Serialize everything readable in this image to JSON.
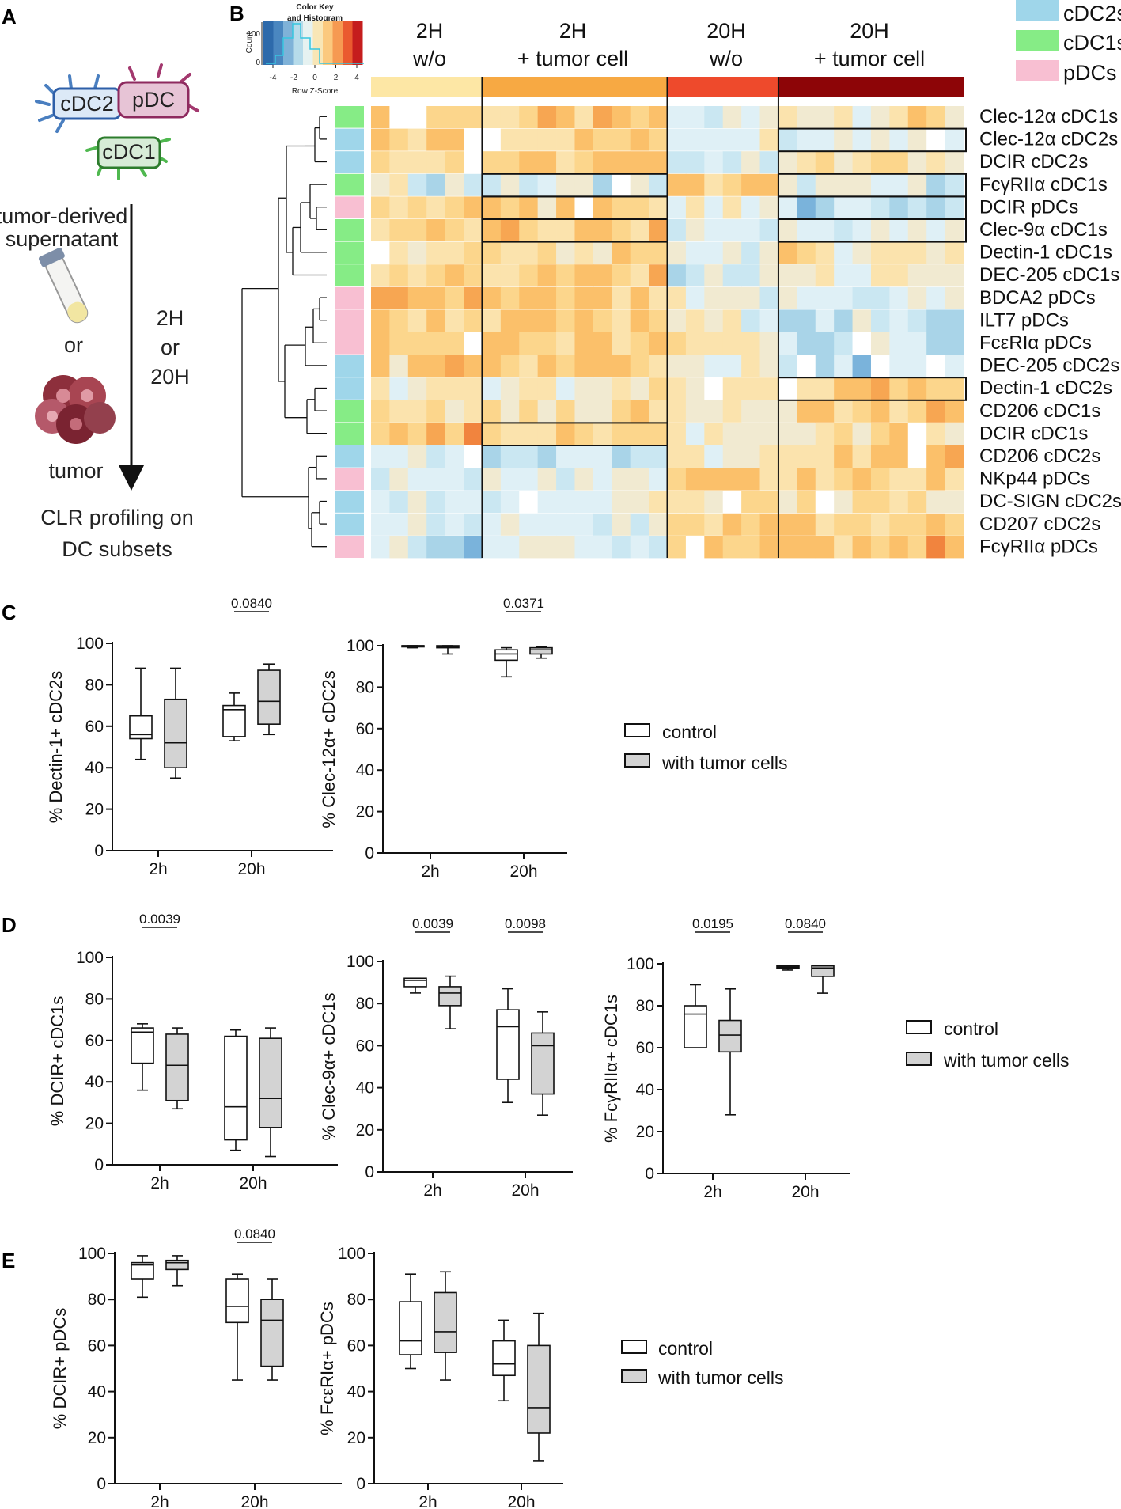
{
  "panels": {
    "A": "A",
    "B": "B",
    "C": "C",
    "D": "D",
    "E": "E"
  },
  "schematic": {
    "cells": {
      "cdc2": "cDC2",
      "pdc": "pDC",
      "cdc1": "cDC1"
    },
    "supernatant_l1": "tumor-derived",
    "supernatant_l2": "supernatant",
    "or_word": "or",
    "tumor_label": "tumor",
    "time_l1": "2H",
    "time_l2": "or",
    "time_l3": "20H",
    "result_l1": "CLR profiling on",
    "result_l2": "DC subsets"
  },
  "colors": {
    "cdc2": "#9fd6ea",
    "cdc1": "#86ec86",
    "pdc": "#f8bfd2",
    "box_control": "#ffffff",
    "box_tumor": "#d3d3d3",
    "bar_2h_wo": "#fde7a5",
    "bar_2h_tumor": "#f7a943",
    "bar_20h_wo": "#ee4a2c",
    "bar_20h_tumor": "#8d0507"
  },
  "heatmap": {
    "color_key_title_l1": "Color Key",
    "color_key_title_l2": "and Histogram",
    "color_key_ylabel": "Count",
    "color_key_counts": [
      "0",
      "100"
    ],
    "color_key_ticks": [
      "-4",
      "-2",
      "0",
      "2",
      "4"
    ],
    "color_key_xlabel": "Row Z-Score",
    "columns": [
      {
        "line1": "2H",
        "line2": "w/o"
      },
      {
        "line1": "2H",
        "line2": "+ tumor cell"
      },
      {
        "line1": "20H",
        "line2": "w/o"
      },
      {
        "line1": "20H",
        "line2": "+ tumor cell"
      }
    ],
    "legend": [
      {
        "label": "cDC2s",
        "key": "cdc2"
      },
      {
        "label": "cDC1s",
        "key": "cdc1"
      },
      {
        "label": "pDCs",
        "key": "pdc"
      }
    ],
    "rows": [
      {
        "label": "Clec-12α cDC1s",
        "subset": "cdc1"
      },
      {
        "label": "Clec-12α cDC2s",
        "subset": "cdc2"
      },
      {
        "label": "DCIR cDC2s",
        "subset": "cdc2"
      },
      {
        "label": "FcγRIIα cDC1s",
        "subset": "cdc1"
      },
      {
        "label": "DCIR pDCs",
        "subset": "pdc"
      },
      {
        "label": "Clec-9α cDC1s",
        "subset": "cdc1"
      },
      {
        "label": "Dectin-1 cDC1s",
        "subset": "cdc1"
      },
      {
        "label": "DEC-205 cDC1s",
        "subset": "cdc1"
      },
      {
        "label": "BDCA2 pDCs",
        "subset": "pdc"
      },
      {
        "label": "ILT7 pDCs",
        "subset": "pdc"
      },
      {
        "label": "FcεRIα pDCs",
        "subset": "pdc"
      },
      {
        "label": "DEC-205 cDC2s",
        "subset": "cdc2"
      },
      {
        "label": "Dectin-1 cDC2s",
        "subset": "cdc2"
      },
      {
        "label": "CD206 cDC1s",
        "subset": "cdc1"
      },
      {
        "label": "DCIR cDC1s",
        "subset": "cdc1"
      },
      {
        "label": "CD206 cDC2s",
        "subset": "cdc2"
      },
      {
        "label": "NKp44 pDCs",
        "subset": "pdc"
      },
      {
        "label": "DC-SIGN cDC2s",
        "subset": "cdc2"
      },
      {
        "label": "CD207 cDC2s",
        "subset": "cdc2"
      },
      {
        "label": "FcγRIIα pDCs",
        "subset": "pdc"
      }
    ],
    "highlights": [
      {
        "group": "2H + tumor cell",
        "rows": [
          "FcγRIIα cDC1s",
          "DCIR pDCs",
          "Clec-9α cDC1s",
          "DCIR cDC1s"
        ]
      },
      {
        "group": "20H + tumor cell",
        "rows": [
          "Clec-12α cDC2s",
          "FcγRIIα cDC1s",
          "DCIR pDCs",
          "Clec-9α cDC1s",
          "Dectin-1 cDC2s"
        ]
      }
    ]
  },
  "legend_box": {
    "control": "control",
    "tumor": "with tumor cells"
  },
  "chart_data": [
    {
      "id": "C1",
      "type": "box",
      "ylabel": "% Dectin-1+ cDC2s",
      "ylim": [
        0,
        100
      ],
      "yticks": [
        0,
        20,
        40,
        60,
        80,
        100
      ],
      "categories": [
        "2h",
        "20h"
      ],
      "series": [
        {
          "name": "control",
          "boxes": [
            {
              "min": 44,
              "q1": 54,
              "median": 56,
              "q3": 65,
              "max": 88
            },
            {
              "min": 53,
              "q1": 55,
              "median": 68,
              "q3": 70,
              "max": 76
            }
          ]
        },
        {
          "name": "with tumor cells",
          "boxes": [
            {
              "min": 35,
              "q1": 40,
              "median": 52,
              "q3": 73,
              "max": 88
            },
            {
              "min": 56,
              "q1": 61,
              "median": 72,
              "q3": 87,
              "max": 90
            }
          ]
        }
      ],
      "pvalues": [
        {
          "category": "20h",
          "label": "0.0840"
        }
      ]
    },
    {
      "id": "C2",
      "type": "box",
      "ylabel": "% Clec-12α+ cDC2s",
      "ylim": [
        0,
        100
      ],
      "yticks": [
        0,
        20,
        40,
        60,
        80,
        100
      ],
      "categories": [
        "2h",
        "20h"
      ],
      "series": [
        {
          "name": "control",
          "boxes": [
            {
              "min": 99,
              "q1": 99.5,
              "median": 100,
              "q3": 100,
              "max": 100
            },
            {
              "min": 85,
              "q1": 93,
              "median": 96,
              "q3": 98,
              "max": 99
            }
          ]
        },
        {
          "name": "with tumor cells",
          "boxes": [
            {
              "min": 96,
              "q1": 99,
              "median": 99.5,
              "q3": 100,
              "max": 100
            },
            {
              "min": 94,
              "q1": 96,
              "median": 98,
              "q3": 99,
              "max": 99.5
            }
          ]
        }
      ],
      "pvalues": [
        {
          "category": "20h",
          "label": "0.0371"
        }
      ]
    },
    {
      "id": "D1",
      "type": "box",
      "ylabel": "% DCIR+ cDC1s",
      "ylim": [
        0,
        100
      ],
      "yticks": [
        0,
        20,
        40,
        60,
        80,
        100
      ],
      "categories": [
        "2h",
        "20h"
      ],
      "series": [
        {
          "name": "control",
          "boxes": [
            {
              "min": 36,
              "q1": 49,
              "median": 64,
              "q3": 66,
              "max": 68
            },
            {
              "min": 7,
              "q1": 12,
              "median": 28,
              "q3": 62,
              "max": 65
            }
          ]
        },
        {
          "name": "with tumor cells",
          "boxes": [
            {
              "min": 27,
              "q1": 31,
              "median": 48,
              "q3": 63,
              "max": 66
            },
            {
              "min": 4,
              "q1": 18,
              "median": 32,
              "q3": 61,
              "max": 66
            }
          ]
        }
      ],
      "pvalues": [
        {
          "category": "2h",
          "label": "0.0039"
        }
      ]
    },
    {
      "id": "D2",
      "type": "box",
      "ylabel": "% Clec-9α+ cDC1s",
      "ylim": [
        0,
        100
      ],
      "yticks": [
        0,
        20,
        40,
        60,
        80,
        100
      ],
      "categories": [
        "2h",
        "20h"
      ],
      "series": [
        {
          "name": "control",
          "boxes": [
            {
              "min": 85,
              "q1": 88,
              "median": 91,
              "q3": 92,
              "max": 92
            },
            {
              "min": 33,
              "q1": 44,
              "median": 69,
              "q3": 77,
              "max": 87
            }
          ]
        },
        {
          "name": "with tumor cells",
          "boxes": [
            {
              "min": 68,
              "q1": 79,
              "median": 85,
              "q3": 88,
              "max": 93
            },
            {
              "min": 27,
              "q1": 37,
              "median": 60,
              "q3": 66,
              "max": 76
            }
          ]
        }
      ],
      "pvalues": [
        {
          "category": "2h",
          "label": "0.0039"
        },
        {
          "category": "20h",
          "label": "0.0098"
        }
      ]
    },
    {
      "id": "D3",
      "type": "box",
      "ylabel": "% FcγRIIα+ cDC1s",
      "ylim": [
        0,
        100
      ],
      "yticks": [
        0,
        20,
        40,
        60,
        80,
        100
      ],
      "categories": [
        "2h",
        "20h"
      ],
      "series": [
        {
          "name": "control",
          "boxes": [
            {
              "min": 60,
              "q1": 60,
              "median": 76,
              "q3": 80,
              "max": 90
            },
            {
              "min": 97,
              "q1": 98,
              "median": 98.5,
              "q3": 99,
              "max": 99
            }
          ]
        },
        {
          "name": "with tumor cells",
          "boxes": [
            {
              "min": 28,
              "q1": 58,
              "median": 66,
              "q3": 73,
              "max": 88
            },
            {
              "min": 86,
              "q1": 94,
              "median": 98,
              "q3": 99,
              "max": 99
            }
          ]
        }
      ],
      "pvalues": [
        {
          "category": "2h",
          "label": "0.0195"
        },
        {
          "category": "20h",
          "label": "0.0840"
        }
      ]
    },
    {
      "id": "E1",
      "type": "box",
      "ylabel": "% DCIR+ pDCs",
      "ylim": [
        0,
        100
      ],
      "yticks": [
        0,
        20,
        40,
        60,
        80,
        100
      ],
      "categories": [
        "2h",
        "20h"
      ],
      "series": [
        {
          "name": "control",
          "boxes": [
            {
              "min": 81,
              "q1": 89,
              "median": 95,
              "q3": 96,
              "max": 99
            },
            {
              "min": 45,
              "q1": 70,
              "median": 77,
              "q3": 89,
              "max": 91
            }
          ]
        },
        {
          "name": "with tumor cells",
          "boxes": [
            {
              "min": 86,
              "q1": 93,
              "median": 96,
              "q3": 97,
              "max": 99
            },
            {
              "min": 45,
              "q1": 51,
              "median": 71,
              "q3": 80,
              "max": 89
            }
          ]
        }
      ],
      "pvalues": [
        {
          "category": "20h",
          "label": "0.0840"
        }
      ]
    },
    {
      "id": "E2",
      "type": "box",
      "ylabel": "% FcεRIα+ pDCs",
      "ylim": [
        0,
        100
      ],
      "yticks": [
        0,
        20,
        40,
        60,
        80,
        100
      ],
      "categories": [
        "2h",
        "20h"
      ],
      "series": [
        {
          "name": "control",
          "boxes": [
            {
              "min": 50,
              "q1": 56,
              "median": 62,
              "q3": 79,
              "max": 91
            },
            {
              "min": 36,
              "q1": 47,
              "median": 52,
              "q3": 62,
              "max": 71
            }
          ]
        },
        {
          "name": "with tumor cells",
          "boxes": [
            {
              "min": 45,
              "q1": 57,
              "median": 66,
              "q3": 83,
              "max": 92
            },
            {
              "min": 10,
              "q1": 22,
              "median": 33,
              "q3": 60,
              "max": 74
            }
          ]
        }
      ],
      "pvalues": []
    }
  ]
}
